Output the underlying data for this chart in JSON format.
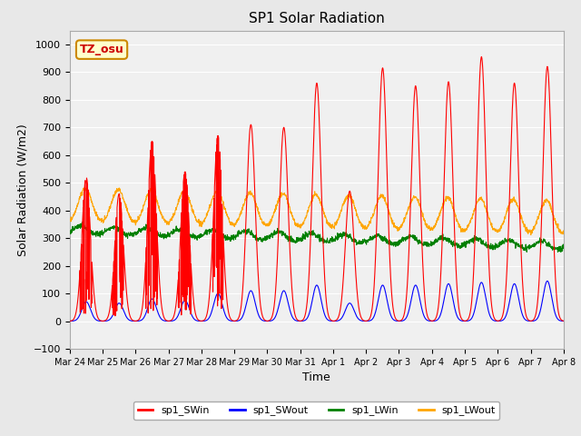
{
  "title": "SP1 Solar Radiation",
  "xlabel": "Time",
  "ylabel": "Solar Radiation (W/m2)",
  "ylim": [
    -100,
    1050
  ],
  "annotation_text": "TZ_osu",
  "annotation_bg": "#FFFFCC",
  "annotation_edge": "#CC8800",
  "background_color": "#E8E8E8",
  "plot_bg": "#F0F0F0",
  "grid_color": "white",
  "colors": {
    "sp1_SWin": "red",
    "sp1_SWout": "blue",
    "sp1_LWin": "green",
    "sp1_LWout": "orange"
  },
  "x_tick_labels": [
    "Mar 24",
    "Mar 25",
    "Mar 26",
    "Mar 27",
    "Mar 28",
    "Mar 29",
    "Mar 30",
    "Mar 31",
    "Apr 1",
    "Apr 2",
    "Apr 3",
    "Apr 4",
    "Apr 5",
    "Apr 6",
    "Apr 7",
    "Apr 8"
  ],
  "num_days": 15,
  "pts_per_day": 144
}
